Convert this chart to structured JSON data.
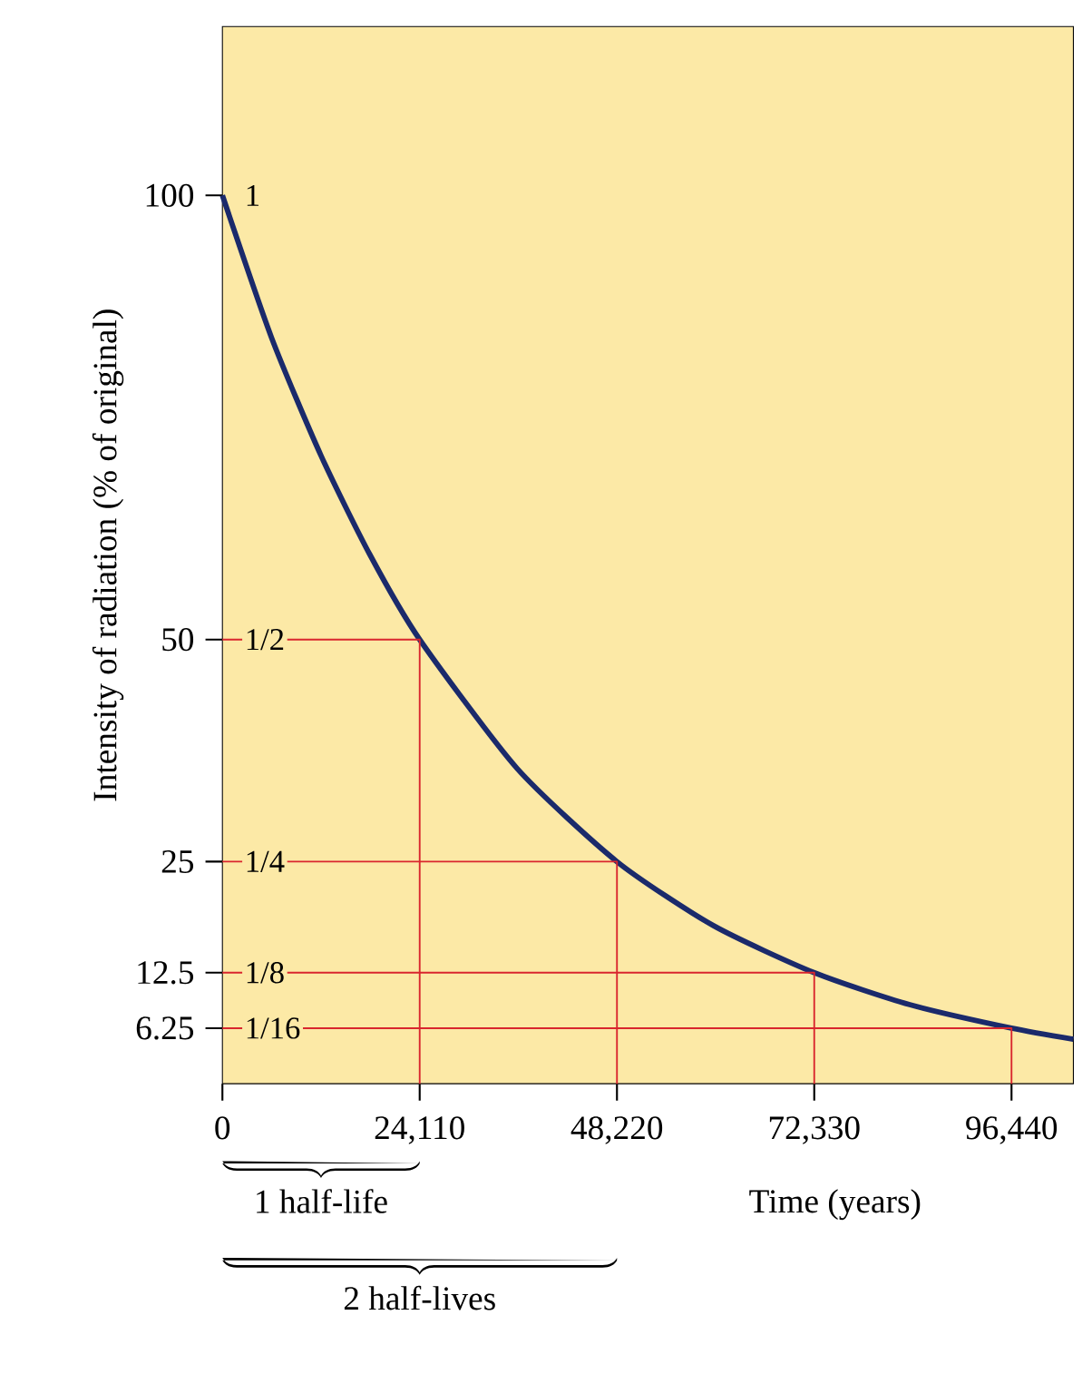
{
  "chart_data": {
    "type": "line",
    "xlabel": "Time (years)",
    "ylabel": "Intensity of radiation (% of original)",
    "xlim": [
      0,
      104000
    ],
    "ylim": [
      0,
      119
    ],
    "xticks": [
      0,
      {
        "value": 24110,
        "label": "24,110"
      },
      {
        "value": 48220,
        "label": "48,220"
      },
      {
        "value": 72330,
        "label": "72,330"
      },
      {
        "value": 96440,
        "label": "96,440"
      }
    ],
    "yticks": [
      6.25,
      12.5,
      25,
      50,
      100
    ],
    "series": [
      {
        "color": "#1b2a6b",
        "x": [
          0,
          6000,
          12055,
          18000,
          24110,
          36000,
          48220,
          60000,
          72330,
          84000,
          96440,
          104000
        ],
        "values": [
          100,
          84,
          70.7,
          59.6,
          50,
          35.5,
          25,
          17.8,
          12.5,
          8.9,
          6.25,
          5
        ]
      },
      {
        "color": "#d9262e",
        "x": [
          0,
          24110,
          24110
        ],
        "values": [
          50,
          50,
          0
        ]
      },
      {
        "color": "#d9262e",
        "x": [
          0,
          48220,
          48220
        ],
        "values": [
          25,
          25,
          0
        ]
      },
      {
        "color": "#d9262e",
        "x": [
          0,
          72330,
          72330
        ],
        "values": [
          12.5,
          12.5,
          0
        ]
      },
      {
        "color": "#d9262e",
        "x": [
          0,
          96440,
          96440
        ],
        "values": [
          6.25,
          6.25,
          0
        ]
      }
    ],
    "annotations": [
      {
        "text": "1",
        "y": 100
      },
      {
        "text": "1/2",
        "y": 50
      },
      {
        "text": "1/4",
        "y": 25
      },
      {
        "text": "1/8",
        "y": 12.5
      },
      {
        "text": "1/16",
        "y": 6.25
      },
      "1 half-life",
      "2 half-lives"
    ]
  }
}
